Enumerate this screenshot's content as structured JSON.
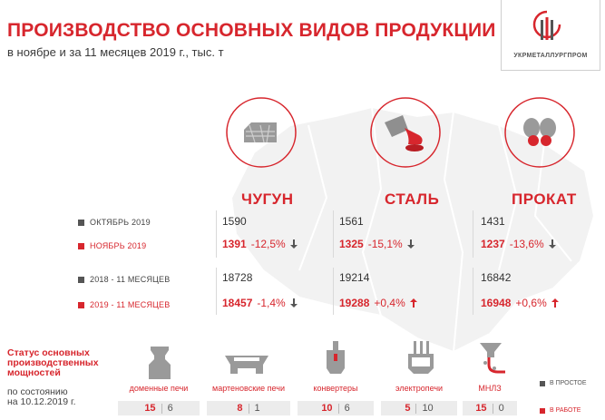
{
  "header": {
    "title": "ПРОИЗВОДСТВО ОСНОВНЫХ ВИДОВ ПРОДУКЦИИ",
    "subtitle": "в ноябре и за 11 месяцев 2019 г., тыс. т",
    "logo_text": "УКРМЕТАЛЛУРГПРОМ"
  },
  "rows": {
    "oct": "ОКТЯБРЬ 2019",
    "nov": "НОЯБРЬ 2019",
    "y2018": "2018 - 11 МЕСЯЦЕВ",
    "y2019": "2019 - 11 МЕСЯЦЕВ"
  },
  "products": [
    {
      "name": "ЧУГУН",
      "icon": "pig-iron-icon",
      "oct": "1590",
      "nov": "1391",
      "nov_change": "-12,5%",
      "nov_dir": "down",
      "y2018": "18728",
      "y2019": "18457",
      "y_change": "-1,4%",
      "y_dir": "down"
    },
    {
      "name": "СТАЛЬ",
      "icon": "steel-ladle-icon",
      "oct": "1561",
      "nov": "1325",
      "nov_change": "-15,1%",
      "nov_dir": "down",
      "y2018": "19214",
      "y2019": "19288",
      "y_change": "+0,4%",
      "y_dir": "up"
    },
    {
      "name": "ПРОКАТ",
      "icon": "rolled-coil-icon",
      "oct": "1431",
      "nov": "1237",
      "nov_change": "-13,6%",
      "nov_dir": "down",
      "y2018": "16842",
      "y2019": "16948",
      "y_change": "+0,6%",
      "y_dir": "up"
    }
  ],
  "status": {
    "title": "Статус основных производственных мощностей",
    "subtitle_line1": "по состоянию",
    "subtitle_line2": "на 10.12.2019 г.",
    "legend_idle": "В ПРОСТОЕ",
    "legend_work": "В РАБОТЕ",
    "capacities": [
      {
        "label": "доменные печи",
        "icon": "blast-furnace-icon",
        "work": "15",
        "idle": "6"
      },
      {
        "label": "мартеновские печи",
        "icon": "open-hearth-furnace-icon",
        "work": "8",
        "idle": "1"
      },
      {
        "label": "конвертеры",
        "icon": "converter-icon",
        "work": "10",
        "idle": "6"
      },
      {
        "label": "электропечи",
        "icon": "electric-furnace-icon",
        "work": "5",
        "idle": "10"
      },
      {
        "label": "МНЛЗ",
        "icon": "continuous-caster-icon",
        "work": "15",
        "idle": "0"
      }
    ]
  },
  "colors": {
    "accent": "#d7262d",
    "text": "#333333",
    "muted": "#ececec",
    "map": "#f2f2f2"
  }
}
